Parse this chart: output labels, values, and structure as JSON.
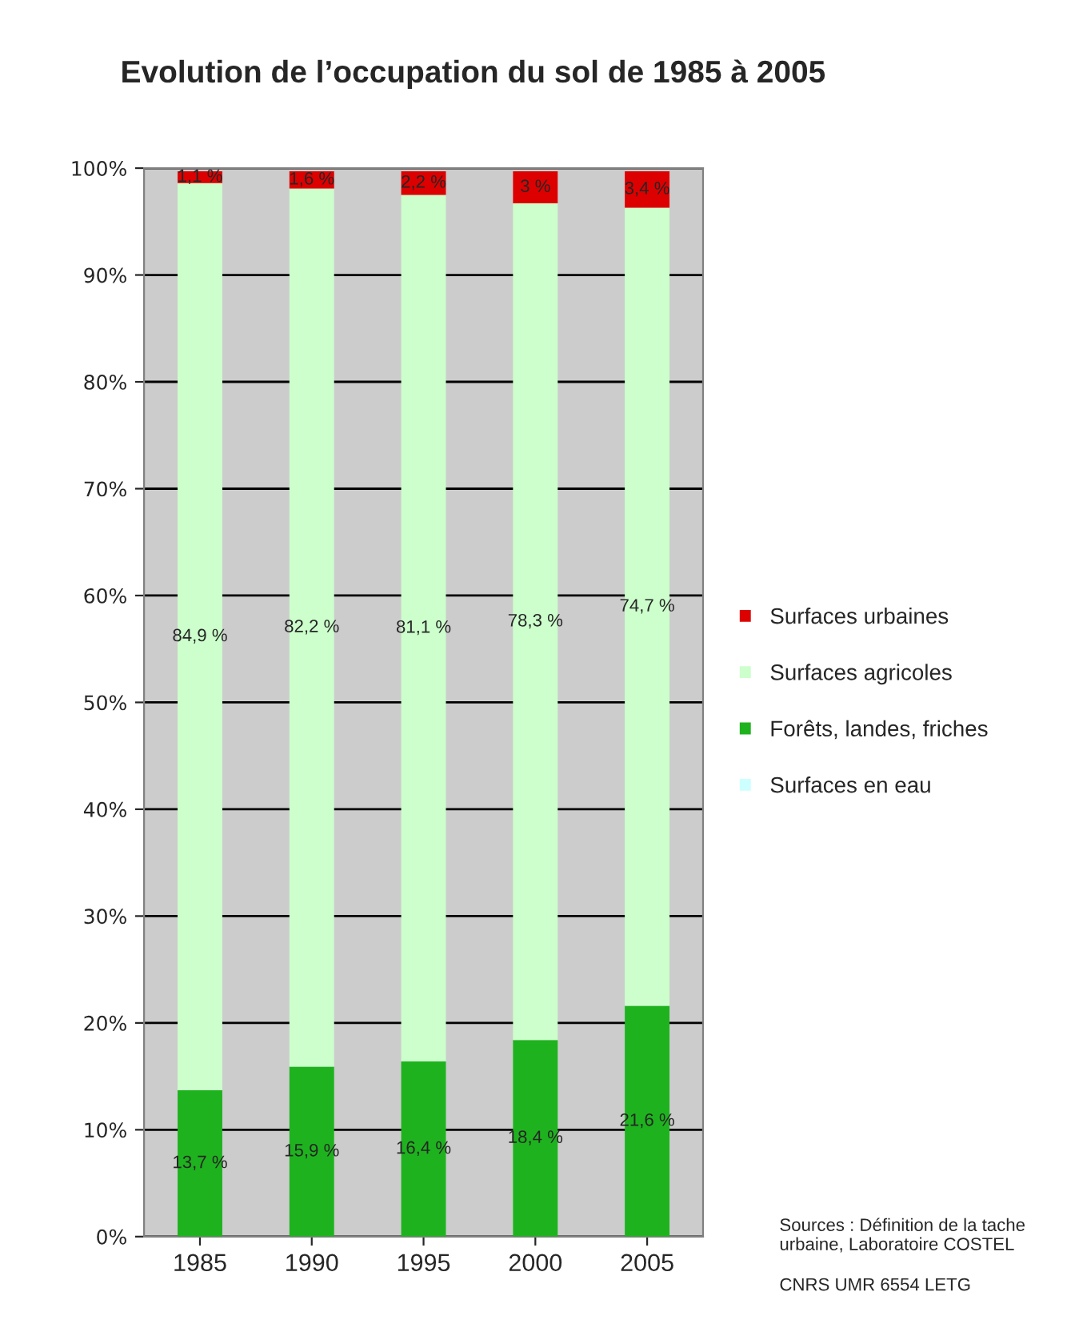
{
  "chart_data": {
    "type": "bar",
    "title": "Evolution de l’occupation du sol de 1985 à 2005",
    "categories": [
      "1985",
      "1990",
      "1995",
      "2000",
      "2005"
    ],
    "stacked": true,
    "series": [
      {
        "name": "Surfaces en eau",
        "color": "#ccffff",
        "values": [
          null,
          null,
          null,
          null,
          null
        ]
      },
      {
        "name": "Forêts, landes, friches",
        "color": "#1eb31e",
        "values": [
          13.7,
          15.9,
          16.4,
          18.4,
          21.6
        ],
        "value_labels": [
          "13,7 %",
          "15,9 %",
          "16,4 %",
          "18,4 %",
          "21,6 %"
        ]
      },
      {
        "name": "Surfaces agricoles",
        "color": "#ccffcc",
        "values": [
          84.9,
          82.2,
          81.1,
          78.3,
          74.7
        ],
        "value_labels": [
          "84,9 %",
          "82,2 %",
          "81,1 %",
          "78,3 %",
          "74,7 %"
        ]
      },
      {
        "name": "Surfaces urbaines",
        "color": "#dd0000",
        "values": [
          1.1,
          1.6,
          2.2,
          3,
          3.4
        ],
        "value_labels": [
          "1,1 %",
          "1,6 %",
          "2,2 %",
          "3 %",
          "3,4 %"
        ]
      }
    ],
    "ylim": [
      0,
      100
    ],
    "yticks": [
      {
        "value": 0,
        "label": "0%"
      },
      {
        "value": 10,
        "label": "10%"
      },
      {
        "value": 20,
        "label": "20%"
      },
      {
        "value": 30,
        "label": "30%"
      },
      {
        "value": 40,
        "label": "40%"
      },
      {
        "value": 50,
        "label": "50%"
      },
      {
        "value": 60,
        "label": "60%"
      },
      {
        "value": 70,
        "label": "70%"
      },
      {
        "value": 80,
        "label": "80%"
      },
      {
        "value": 90,
        "label": "90%"
      },
      {
        "value": 100,
        "label": "100%"
      }
    ],
    "grid": "y",
    "legend": "right",
    "annotations": [
      "Sources : Définition de la tache urbaine, Laboratoire COSTEL",
      "CNRS UMR 6554 LETG"
    ]
  }
}
